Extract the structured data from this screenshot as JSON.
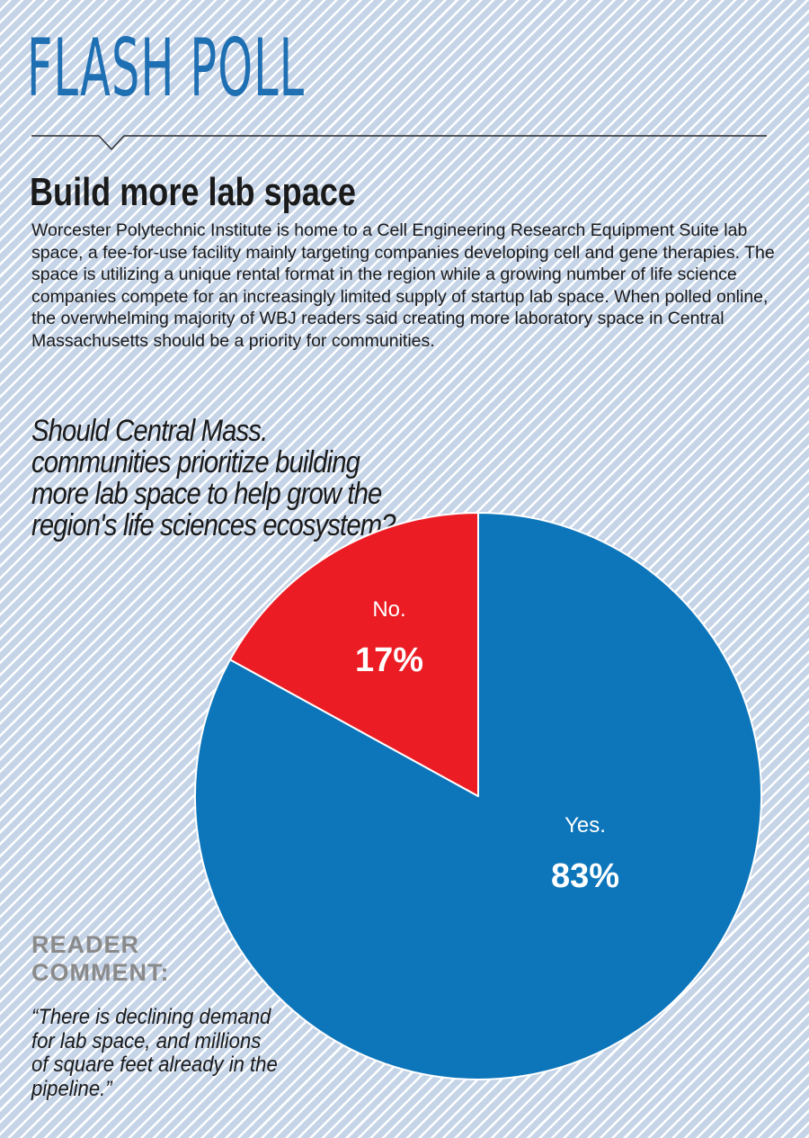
{
  "header": {
    "title": "FLASH POLL"
  },
  "article": {
    "headline": "Build more lab space",
    "intro": "Worcester Polytechnic Institute is home to a Cell Engineering Research Equipment Suite lab space, a fee-for-use facility mainly targeting companies developing cell and gene therapies. The space is utilizing a unique rental format in the region while a growing number of life science companies compete for an increasingly limited supply of startup lab space. When polled online, the overwhelming majority of WBJ readers said creating more laboratory space in Central Massachusetts should be a priority for communities."
  },
  "chart_data": {
    "type": "pie",
    "title": "Should Central Mass. communities prioritize building more lab space to help grow the region's life sciences ecosystem?",
    "categories": [
      "Yes.",
      "No."
    ],
    "values": [
      83,
      17
    ],
    "value_labels": [
      "83%",
      "17%"
    ],
    "colors": [
      "#0d76bb",
      "#ec1c24"
    ],
    "label_color": "#ffffff"
  },
  "comment": {
    "label_line1": "READER",
    "label_line2": "COMMENT:",
    "quote": "“There is declining demand for lab space, and millions of square feet already in the pipeline.”"
  },
  "colors": {
    "title_blue": "#1f6fb3",
    "background": "#c6d4e8",
    "comment_gray": "#8a8a8a"
  }
}
